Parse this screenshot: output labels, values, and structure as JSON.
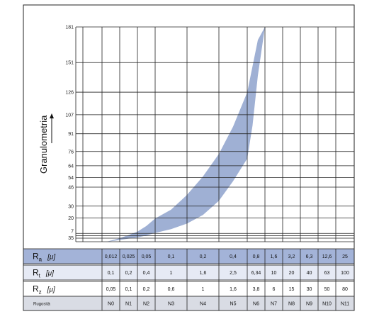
{
  "chart_data": {
    "type": "area",
    "ylabel": "Granulometria",
    "y_ticks": [
      3,
      5,
      7,
      20,
      30,
      46,
      54,
      64,
      76,
      91,
      107,
      126,
      151,
      181
    ],
    "band_color": "#9fb0d4",
    "band": {
      "x_index": [
        0.25,
        0.6,
        1.0,
        1.5,
        2.0,
        2.5,
        3.0,
        3.5,
        4.0,
        4.5,
        5.0,
        5.5,
        6.0,
        6.3,
        6.6,
        7.0
      ],
      "upper": [
        0,
        1.3,
        3.0,
        5.6,
        8.5,
        13.2,
        19.6,
        27.0,
        39.5,
        55.0,
        74.0,
        97.0,
        126.0,
        148.0,
        170.0,
        181.0
      ],
      "lower": [
        0,
        0.6,
        1.5,
        2.6,
        3.6,
        5.2,
        7.4,
        10.6,
        15.3,
        22.5,
        34.5,
        51.0,
        70.0,
        98.0,
        140.0,
        181.0
      ]
    },
    "table": {
      "columns": [
        "N0",
        "N1",
        "N2",
        "N3",
        "N4",
        "N5",
        "N6",
        "N7",
        "N8",
        "N9",
        "N10",
        "N11"
      ],
      "rows": [
        {
          "symbol": "R",
          "sub": "a",
          "unit": "[μ]",
          "values": [
            "0,012",
            "0,025",
            "0,05",
            "0,1",
            "0,2",
            "0,4",
            "0,8",
            "1,6",
            "3,2",
            "6,3",
            "12,6",
            "25"
          ]
        },
        {
          "symbol": "R",
          "sub": "t",
          "unit": "[μ]",
          "values": [
            "0,1",
            "0,2",
            "0,4",
            "1",
            "1,6",
            "2,5",
            "6,34",
            "10",
            "20",
            "40",
            "63",
            "100"
          ]
        },
        {
          "symbol": "R",
          "sub": "z",
          "unit": "[μ]",
          "values": [
            "0,05",
            "0,1",
            "0,2",
            "0,6",
            "1",
            "1,6",
            "3,8",
            "6",
            "15",
            "30",
            "50",
            "80"
          ]
        }
      ],
      "footer_label": "Rugosità",
      "header_row_color": "#a3b3d8",
      "alt_row_color": "#e6eaf5"
    }
  }
}
